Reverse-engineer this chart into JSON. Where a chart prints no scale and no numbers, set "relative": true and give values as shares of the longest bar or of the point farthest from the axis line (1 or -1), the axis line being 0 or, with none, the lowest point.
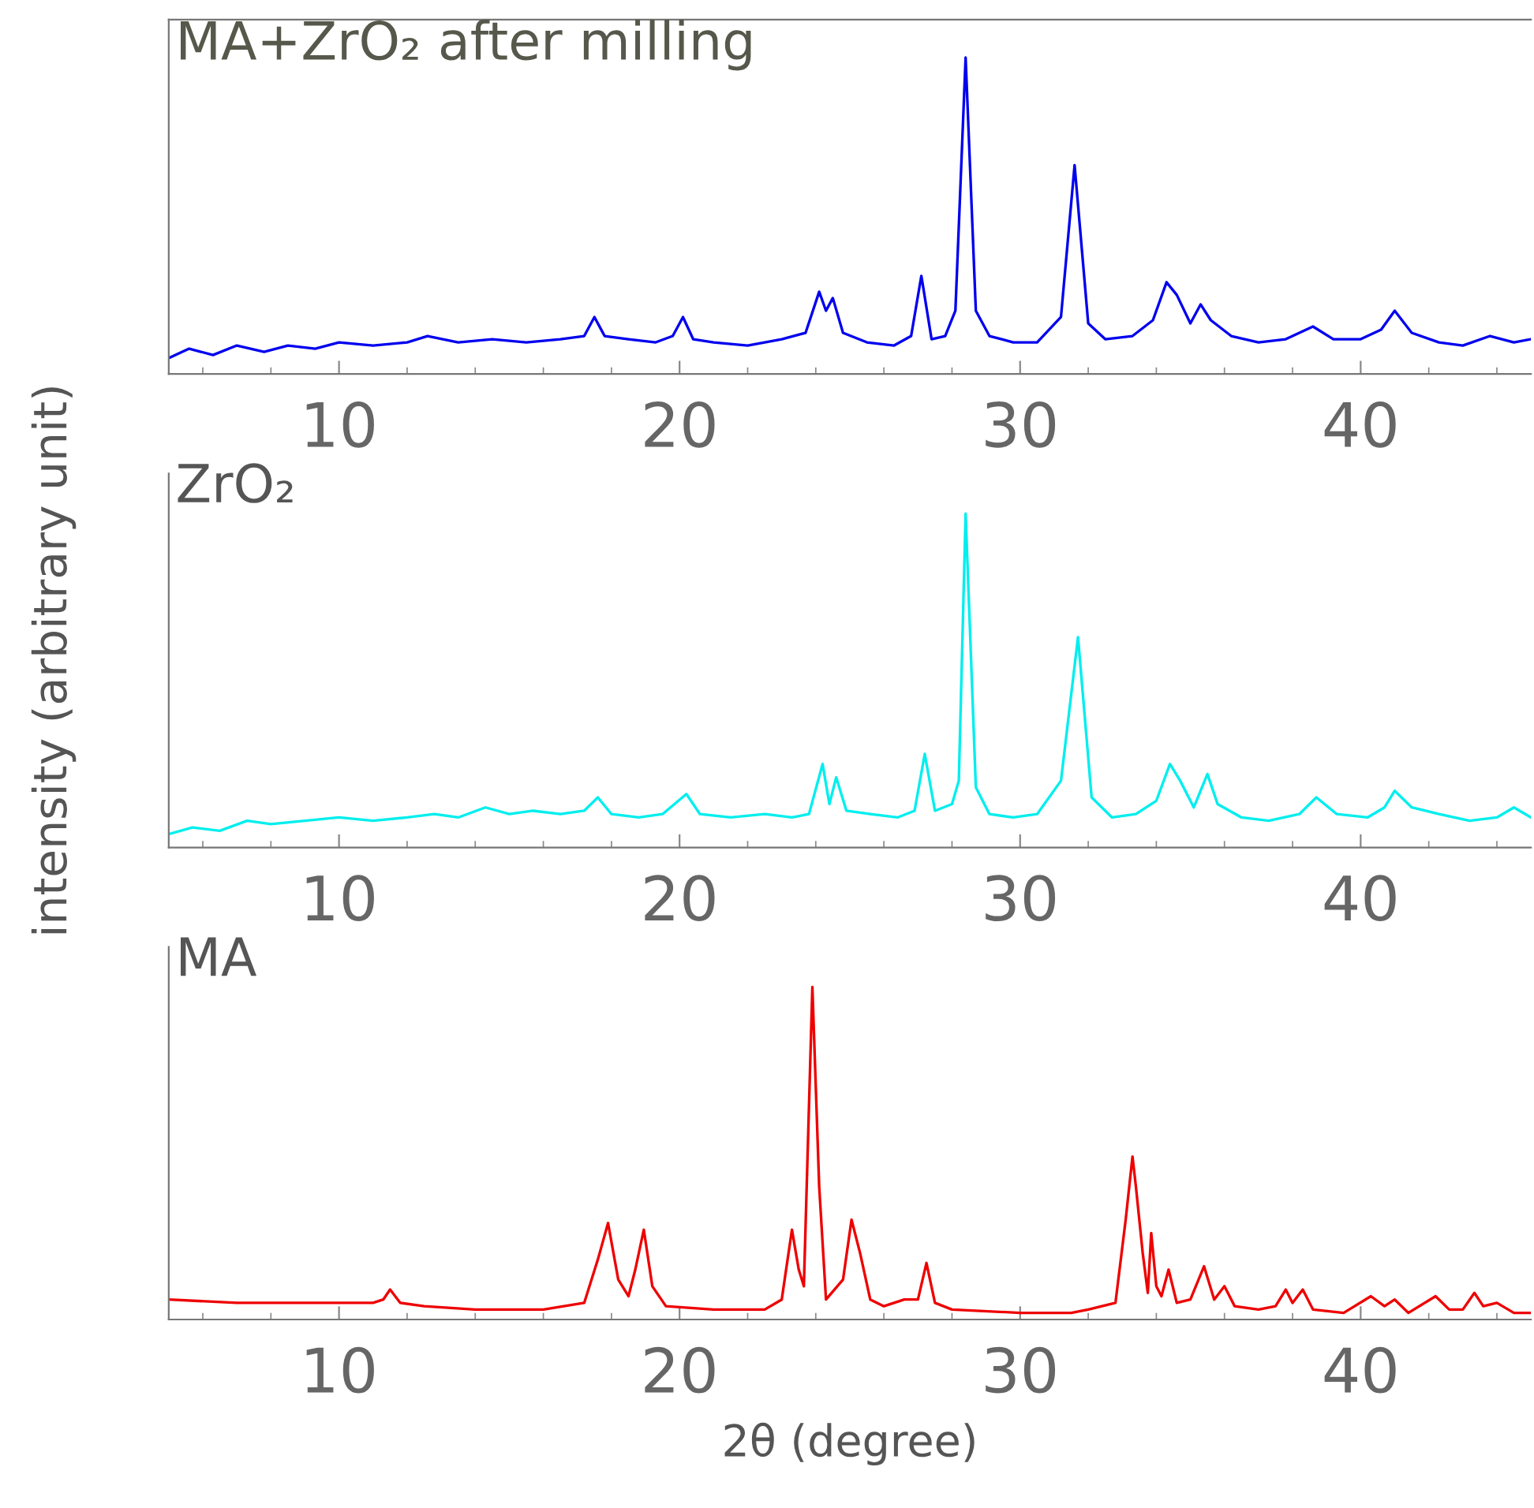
{
  "chart_data": [
    {
      "type": "line",
      "title": "MA+ZrO₂ after milling",
      "relative": true,
      "xlim": [
        5,
        45
      ],
      "xticks": [
        10,
        20,
        30,
        40
      ],
      "grid": false,
      "legend": false,
      "marker": "none",
      "line_style": "solid",
      "series": [
        {
          "color": "#0000ee",
          "x": [
            5,
            5.6,
            6.3,
            7,
            7.8,
            8.5,
            9.3,
            10,
            11,
            12,
            12.6,
            13.5,
            14.5,
            15.5,
            16.5,
            17.2,
            17.5,
            17.8,
            18.5,
            19.3,
            19.8,
            20.1,
            20.4,
            21,
            22,
            23,
            23.7,
            24.1,
            24.3,
            24.5,
            24.8,
            25.5,
            26.3,
            26.8,
            27.1,
            27.4,
            27.8,
            28.1,
            28.4,
            28.7,
            29.1,
            29.8,
            30.5,
            31.2,
            31.6,
            32,
            32.5,
            33.3,
            33.9,
            34.3,
            34.6,
            35,
            35.3,
            35.6,
            36.2,
            37,
            37.8,
            38.6,
            39.2,
            40,
            40.6,
            41,
            41.5,
            42.3,
            43,
            43.8,
            44.5,
            45
          ],
          "values": [
            0.05,
            0.08,
            0.06,
            0.09,
            0.07,
            0.09,
            0.08,
            0.1,
            0.09,
            0.1,
            0.12,
            0.1,
            0.11,
            0.1,
            0.11,
            0.12,
            0.18,
            0.12,
            0.11,
            0.1,
            0.12,
            0.18,
            0.11,
            0.1,
            0.09,
            0.11,
            0.13,
            0.26,
            0.2,
            0.24,
            0.13,
            0.1,
            0.09,
            0.12,
            0.31,
            0.11,
            0.12,
            0.2,
            1.0,
            0.2,
            0.12,
            0.1,
            0.1,
            0.18,
            0.66,
            0.16,
            0.11,
            0.12,
            0.17,
            0.29,
            0.25,
            0.16,
            0.22,
            0.17,
            0.12,
            0.1,
            0.11,
            0.15,
            0.11,
            0.11,
            0.14,
            0.2,
            0.13,
            0.1,
            0.09,
            0.12,
            0.1,
            0.11
          ]
        }
      ]
    },
    {
      "type": "line",
      "title": "ZrO₂",
      "ylabel": "intensity (arbitrary unit)",
      "relative": true,
      "xlim": [
        5,
        45
      ],
      "xticks": [
        10,
        20,
        30,
        40
      ],
      "grid": false,
      "legend": false,
      "marker": "none",
      "line_style": "solid",
      "series": [
        {
          "color": "#00eeee",
          "x": [
            5,
            5.7,
            6.5,
            7.3,
            8,
            9,
            10,
            11,
            12,
            12.8,
            13.5,
            14.3,
            15,
            15.7,
            16.5,
            17.2,
            17.6,
            18,
            18.8,
            19.5,
            20.2,
            20.6,
            21.5,
            22.5,
            23.3,
            23.8,
            24.2,
            24.4,
            24.6,
            24.9,
            25.6,
            26.4,
            26.9,
            27.2,
            27.5,
            28,
            28.2,
            28.4,
            28.7,
            29.1,
            29.8,
            30.5,
            31.2,
            31.7,
            32.1,
            32.7,
            33.4,
            34,
            34.4,
            34.7,
            35.1,
            35.5,
            35.8,
            36.5,
            37.3,
            38.2,
            38.7,
            39.3,
            40.2,
            40.7,
            41,
            41.5,
            42.3,
            43.2,
            44,
            44.5,
            45
          ],
          "values": [
            0.04,
            0.06,
            0.05,
            0.08,
            0.07,
            0.08,
            0.09,
            0.08,
            0.09,
            0.1,
            0.09,
            0.12,
            0.1,
            0.11,
            0.1,
            0.11,
            0.15,
            0.1,
            0.09,
            0.1,
            0.16,
            0.1,
            0.09,
            0.1,
            0.09,
            0.1,
            0.25,
            0.13,
            0.21,
            0.11,
            0.1,
            0.09,
            0.11,
            0.28,
            0.11,
            0.13,
            0.2,
            1.0,
            0.18,
            0.1,
            0.09,
            0.1,
            0.2,
            0.63,
            0.15,
            0.09,
            0.1,
            0.14,
            0.25,
            0.2,
            0.12,
            0.22,
            0.13,
            0.09,
            0.08,
            0.1,
            0.15,
            0.1,
            0.09,
            0.12,
            0.17,
            0.12,
            0.1,
            0.08,
            0.09,
            0.12,
            0.09
          ]
        }
      ]
    },
    {
      "type": "line",
      "title": "MA",
      "xlabel": "2θ (degree)",
      "relative": true,
      "xlim": [
        5,
        45
      ],
      "xticks": [
        10,
        20,
        30,
        40
      ],
      "grid": false,
      "legend": false,
      "marker": "none",
      "line_style": "solid",
      "series": [
        {
          "color": "#ee0000",
          "x": [
            5,
            7,
            9,
            11,
            11.3,
            11.5,
            11.8,
            12.5,
            14,
            16,
            17.2,
            17.6,
            17.9,
            18.2,
            18.5,
            18.7,
            18.95,
            19.2,
            19.6,
            21,
            22.5,
            23.0,
            23.3,
            23.5,
            23.65,
            23.9,
            24.1,
            24.3,
            24.8,
            25.05,
            25.3,
            25.6,
            26,
            26.6,
            27,
            27.25,
            27.5,
            28,
            30,
            31.5,
            32,
            32.8,
            33.1,
            33.3,
            33.4,
            33.6,
            33.75,
            33.85,
            34.0,
            34.15,
            34.36,
            34.6,
            35.0,
            35.4,
            35.7,
            36.0,
            36.3,
            37,
            37.5,
            37.8,
            38.0,
            38.3,
            38.6,
            39.5,
            40.3,
            40.7,
            41.0,
            41.4,
            42.2,
            42.6,
            43.0,
            43.34,
            43.6,
            44.0,
            44.5,
            45
          ],
          "values": [
            0.06,
            0.05,
            0.05,
            0.05,
            0.06,
            0.09,
            0.05,
            0.04,
            0.03,
            0.03,
            0.05,
            0.18,
            0.29,
            0.12,
            0.07,
            0.15,
            0.27,
            0.1,
            0.04,
            0.03,
            0.03,
            0.06,
            0.27,
            0.15,
            0.1,
            1.0,
            0.4,
            0.06,
            0.12,
            0.3,
            0.2,
            0.06,
            0.04,
            0.06,
            0.06,
            0.17,
            0.05,
            0.03,
            0.02,
            0.02,
            0.03,
            0.05,
            0.3,
            0.49,
            0.4,
            0.2,
            0.08,
            0.26,
            0.1,
            0.07,
            0.15,
            0.05,
            0.06,
            0.16,
            0.06,
            0.1,
            0.04,
            0.03,
            0.04,
            0.09,
            0.05,
            0.09,
            0.03,
            0.02,
            0.07,
            0.04,
            0.06,
            0.02,
            0.07,
            0.03,
            0.03,
            0.08,
            0.04,
            0.05,
            0.02,
            0.02
          ]
        }
      ]
    }
  ]
}
